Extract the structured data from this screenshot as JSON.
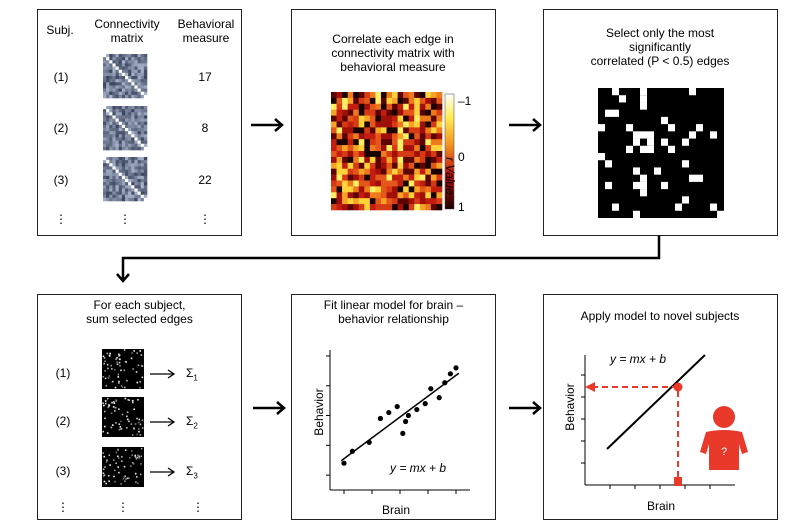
{
  "panel1": {
    "headers": {
      "subj": "Subj.",
      "conn": "Connectivity\nmatrix",
      "beh": "Behavioral\nmeasure"
    },
    "rows": [
      {
        "label": "(1)",
        "value": "17"
      },
      {
        "label": "(2)",
        "value": "8"
      },
      {
        "label": "(3)",
        "value": "22"
      }
    ],
    "ellipsis": "⋮"
  },
  "panel2": {
    "title": "Correlate each edge in\nconnectivity matrix with\nbehavioral measure",
    "colorbar": {
      "top": "–1",
      "mid": "0",
      "bottom": "1",
      "label": "r Value"
    }
  },
  "panel3": {
    "title_line1": "Select only the most",
    "title_line2": "significantly",
    "title_line3": "correlated (P < 0.5) edges"
  },
  "panel4": {
    "title": "For each subject,\nsum selected edges",
    "rows": [
      {
        "label": "(1)",
        "sum": "Σ",
        "sub": "1"
      },
      {
        "label": "(2)",
        "sum": "Σ",
        "sub": "2"
      },
      {
        "label": "(3)",
        "sum": "Σ",
        "sub": "3"
      }
    ],
    "ellipsis": "⋮"
  },
  "panel5": {
    "title": "Fit linear model for brain –\nbehavior relationship",
    "ylabel": "Behavior",
    "xlabel": "Brain",
    "equation": "y = mx + b"
  },
  "panel6": {
    "title": "Apply model to novel subjects",
    "ylabel": "Behavior",
    "xlabel": "Brain",
    "equation": "y = mx + b",
    "person_mark": "?"
  },
  "colors": {
    "accent": "#e8392a",
    "person": "#e8392a",
    "scatter": "#000000"
  },
  "chart_data": {
    "type": "scatter",
    "x": [
      1.0,
      1.3,
      1.9,
      2.3,
      2.6,
      2.9,
      3.1,
      3.2,
      3.3,
      3.6,
      3.9,
      4.1,
      4.4,
      4.6,
      4.8,
      5.0
    ],
    "y": [
      1.4,
      1.8,
      2.1,
      2.9,
      3.1,
      3.3,
      2.4,
      2.8,
      3.0,
      3.2,
      3.4,
      3.9,
      3.6,
      4.1,
      4.4,
      4.6
    ],
    "xlabel": "Brain",
    "ylabel": "Behavior"
  }
}
